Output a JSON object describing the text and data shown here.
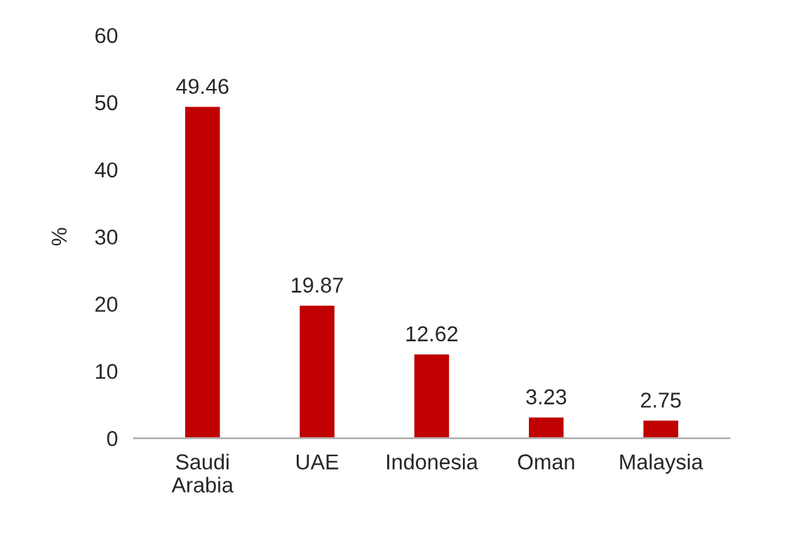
{
  "chart_data": {
    "type": "bar",
    "ylabel": "%",
    "categories": [
      "Saudi\nArabia",
      "UAE",
      "Indonesia",
      "Oman",
      "Malaysia"
    ],
    "values": [
      49.46,
      19.87,
      12.62,
      3.23,
      2.75
    ],
    "color": "#c00000",
    "ylim": [
      0,
      60
    ],
    "yticks": [
      0,
      10,
      20,
      30,
      40,
      50,
      60
    ],
    "data_labels": true,
    "grid": false,
    "legend": false
  }
}
